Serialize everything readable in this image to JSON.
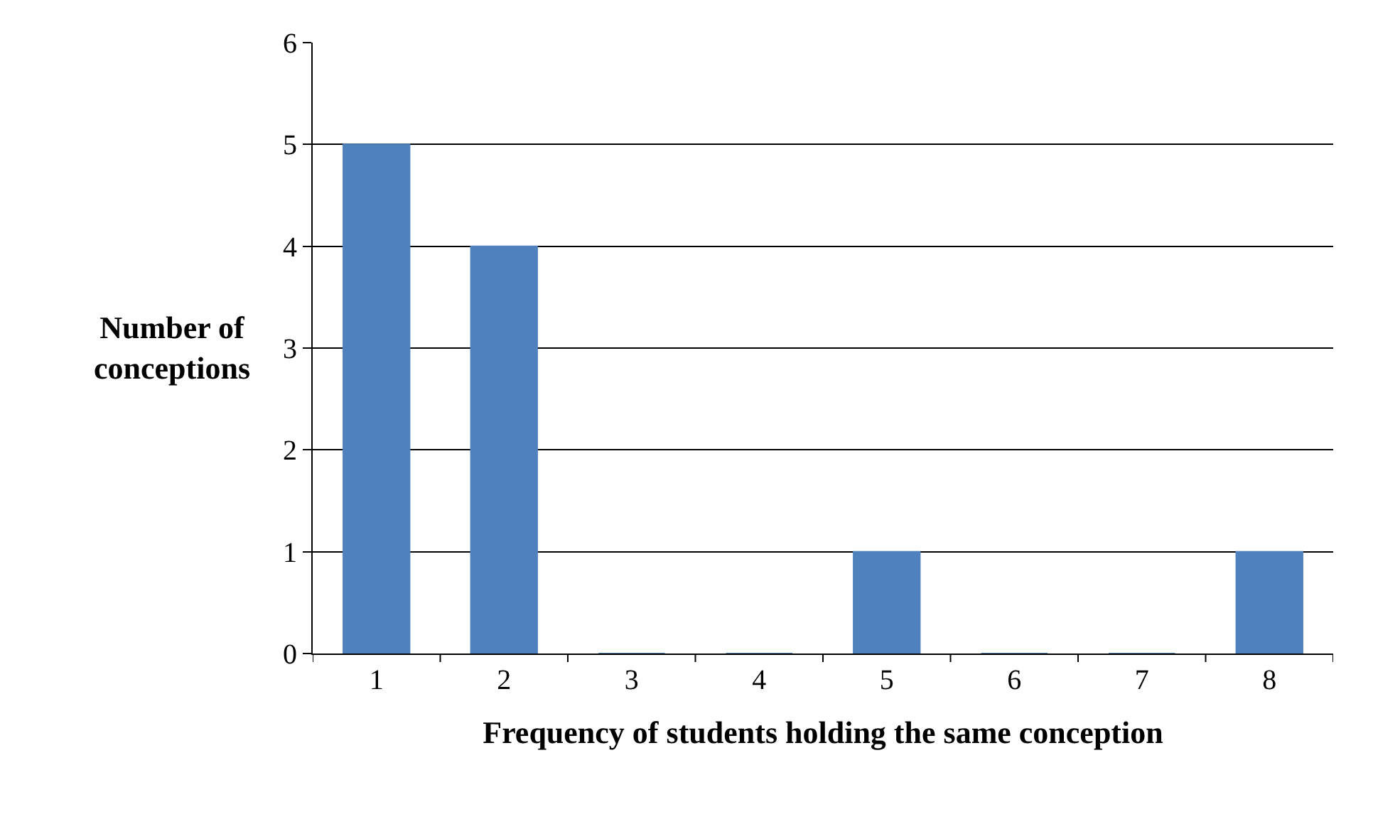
{
  "chart_data": {
    "type": "bar",
    "categories": [
      "1",
      "2",
      "3",
      "4",
      "5",
      "6",
      "7",
      "8"
    ],
    "values": [
      5,
      4,
      0,
      0,
      1,
      0,
      0,
      1
    ],
    "color": "#4f81bd",
    "xlabel": "Frequency of students holding the same conception",
    "ylabel": "Number of conceptions",
    "ylim": [
      0,
      6
    ],
    "yticks": [
      0,
      1,
      2,
      3,
      4,
      5,
      6
    ],
    "grid": "y",
    "legend": false
  }
}
